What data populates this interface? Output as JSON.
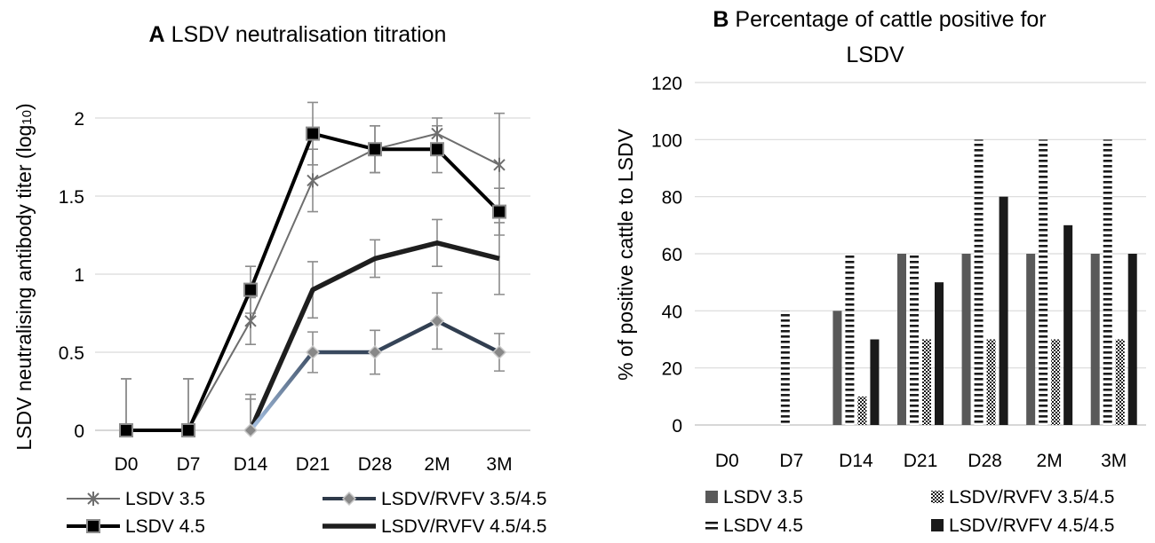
{
  "chart_data": [
    {
      "type": "line",
      "panel_letter": "A",
      "title": "LSDV neutralisation titration",
      "xlabel": "",
      "ylabel": "LSDV neutralising antibody titer (log10)",
      "ylabel_main": "LSDV neutralising antibody titer (log",
      "ylabel_sub": "10",
      "ylabel_end": ")",
      "categories": [
        "D0",
        "D7",
        "D14",
        "D21",
        "D28",
        "2M",
        "3M"
      ],
      "ylim": [
        0,
        2
      ],
      "yticks": [
        0,
        0.5,
        1,
        1.5,
        2
      ],
      "ytick_labels": [
        "0",
        "0.5",
        "1",
        "1.5",
        "2"
      ],
      "grid": true,
      "legend_position": "bottom",
      "series": [
        {
          "name": "LSDV 3.5",
          "values": [
            0,
            0,
            0.7,
            1.6,
            1.8,
            1.9,
            1.7
          ],
          "errors": [
            0.33,
            0.33,
            0.15,
            0.2,
            0.15,
            0.1,
            0.33
          ],
          "color": "#6e6e6e",
          "marker": "asterisk"
        },
        {
          "name": "LSDV 4.5",
          "values": [
            0,
            0,
            0.9,
            1.9,
            1.8,
            1.8,
            1.4
          ],
          "errors": [
            0.33,
            0.33,
            0.15,
            0.2,
            0.15,
            0.15,
            0.15
          ],
          "color": "#000000",
          "marker": "square"
        },
        {
          "name": "LSDV/RVFV 3.5/4.5",
          "values": [
            null,
            null,
            0,
            0.5,
            0.5,
            0.7,
            0.5
          ],
          "errors": [
            null,
            null,
            0.23,
            0.13,
            0.14,
            0.18,
            0.12
          ],
          "color": "#2e3a4a",
          "marker": "diamond"
        },
        {
          "name": "LSDV/RVFV 4.5/4.5",
          "values": [
            null,
            null,
            0,
            0.9,
            1.1,
            1.2,
            1.1
          ],
          "errors": [
            null,
            null,
            0.2,
            0.18,
            0.12,
            0.15,
            0.23
          ],
          "color": "#1e1e1e",
          "marker": "none"
        }
      ]
    },
    {
      "type": "bar",
      "panel_letter": "B",
      "title": "Percentage of cattle positive for LSDV",
      "title_line1": "Percentage of cattle positive for",
      "title_line2": "LSDV",
      "xlabel": "",
      "ylabel": "% of positive cattle to LSDV",
      "categories": [
        "D0",
        "D7",
        "D14",
        "D21",
        "D28",
        "2M",
        "3M"
      ],
      "ylim": [
        0,
        120
      ],
      "yticks": [
        0,
        20,
        40,
        60,
        80,
        100,
        120
      ],
      "ytick_labels": [
        "0",
        "20",
        "40",
        "60",
        "80",
        "100",
        "120"
      ],
      "grid": true,
      "legend_position": "bottom",
      "series": [
        {
          "name": "LSDV 3.5",
          "values": [
            0,
            0,
            40,
            60,
            60,
            60,
            60
          ],
          "color": "#595959",
          "pattern": "solid"
        },
        {
          "name": "LSDV 4.5",
          "values": [
            0,
            40,
            60,
            60,
            100,
            100,
            100
          ],
          "color": "#1a1a1a",
          "pattern": "horizontal-stripes"
        },
        {
          "name": "LSDV/RVFV 3.5/4.5",
          "values": [
            0,
            0,
            10,
            30,
            30,
            30,
            30
          ],
          "color": "#1a1a1a",
          "pattern": "checker"
        },
        {
          "name": "LSDV/RVFV 4.5/4.5",
          "values": [
            0,
            0,
            30,
            50,
            80,
            70,
            60
          ],
          "color": "#1a1a1a",
          "pattern": "solid"
        }
      ]
    }
  ]
}
